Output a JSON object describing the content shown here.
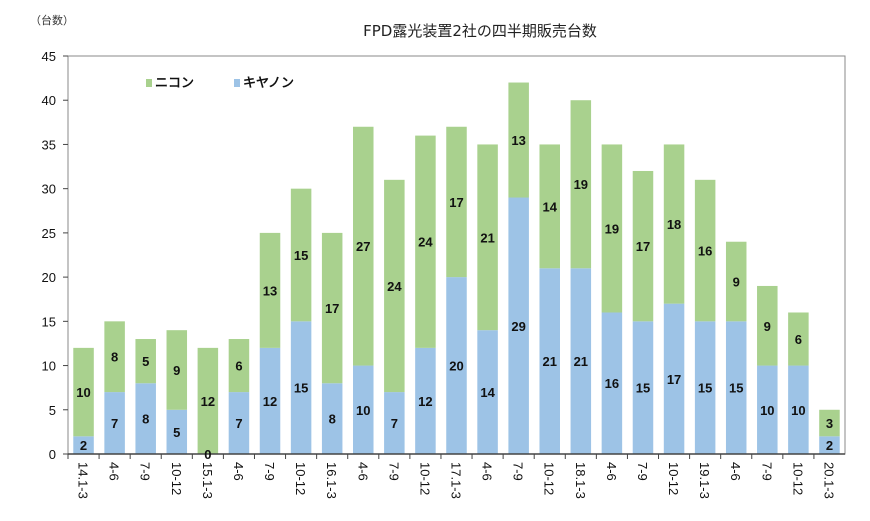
{
  "chart_data": {
    "type": "bar",
    "stacked": true,
    "title": "FPD露光装置2社の四半期販売台数",
    "ylabel": "（台数）",
    "xlabel": "",
    "ylim": [
      0,
      45
    ],
    "yticks": [
      0,
      5,
      10,
      15,
      20,
      25,
      30,
      35,
      40,
      45
    ],
    "grid": false,
    "legend_position": "top-left",
    "categories": [
      "14.1-3",
      "4-6",
      "7-9",
      "10-12",
      "15.1-3",
      "4-6",
      "7-9",
      "10-12",
      "16.1-3",
      "4-6",
      "7-9",
      "10-12",
      "17.1-3",
      "4-6",
      "7-9",
      "10-12",
      "18.1-3",
      "4-6",
      "7-9",
      "10-12",
      "19.1-3",
      "4-6",
      "7-9",
      "10-12",
      "20.1-3"
    ],
    "series": [
      {
        "name": "キヤノン",
        "color": "#9dc3e6",
        "values": [
          2,
          7,
          8,
          5,
          0,
          7,
          12,
          15,
          8,
          10,
          7,
          12,
          20,
          14,
          29,
          21,
          21,
          16,
          15,
          17,
          15,
          15,
          10,
          10,
          2
        ]
      },
      {
        "name": "ニコン",
        "color": "#a9d18e",
        "values": [
          10,
          8,
          5,
          9,
          12,
          6,
          13,
          15,
          17,
          27,
          24,
          24,
          17,
          21,
          13,
          14,
          19,
          19,
          17,
          18,
          16,
          9,
          9,
          6,
          3
        ]
      }
    ],
    "legend": [
      "ニコン",
      "キヤノン"
    ]
  }
}
